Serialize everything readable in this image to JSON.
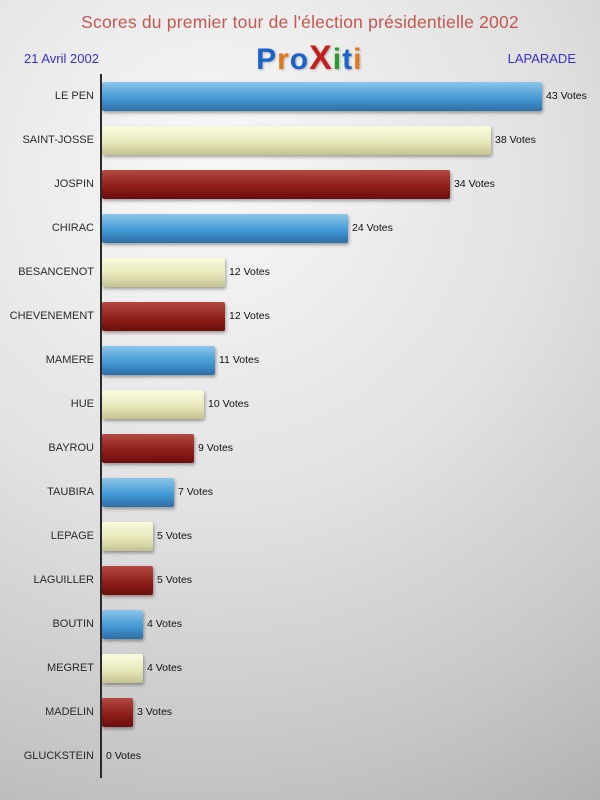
{
  "header": {
    "title": "Scores du premier tour de l'élection présidentielle 2002",
    "date": "21 Avril 2002",
    "location": "LAPARADE",
    "logo_letters": [
      {
        "ch": "P",
        "color": "#1b63c8",
        "big": false
      },
      {
        "ch": "r",
        "color": "#e07818",
        "big": false
      },
      {
        "ch": "o",
        "color": "#1b63c8",
        "big": false
      },
      {
        "ch": "X",
        "color": "#c41f1f",
        "big": true
      },
      {
        "ch": "i",
        "color": "#2a9a2a",
        "big": false
      },
      {
        "ch": "t",
        "color": "#1b63c8",
        "big": false
      },
      {
        "ch": "i",
        "color": "#e07818",
        "big": false
      }
    ]
  },
  "chart_data": {
    "type": "bar",
    "orientation": "horizontal",
    "title": "Scores du premier tour de l'élection présidentielle 2002",
    "categories": [
      "LE PEN",
      "SAINT-JOSSE",
      "JOSPIN",
      "CHIRAC",
      "BESANCENOT",
      "CHEVENEMENT",
      "MAMERE",
      "HUE",
      "BAYROU",
      "TAUBIRA",
      "LEPAGE",
      "LAGUILLER",
      "BOUTIN",
      "MEGRET",
      "MADELIN",
      "GLUCKSTEIN"
    ],
    "values": [
      43,
      38,
      34,
      24,
      12,
      12,
      11,
      10,
      9,
      7,
      5,
      5,
      4,
      4,
      3,
      0
    ],
    "value_suffix": " Votes",
    "xlim": [
      0,
      43
    ],
    "legend": "none",
    "grid": false,
    "color_cycle": [
      "blue",
      "cream",
      "darkred"
    ],
    "palette": {
      "blue": [
        "#8cc6e8",
        "#459ad6",
        "#2d6fa5"
      ],
      "cream": [
        "#fafae0",
        "#e8e8bc",
        "#c2c292"
      ],
      "darkred": [
        "#b24a42",
        "#8e1f1a",
        "#6b0e0c"
      ]
    }
  }
}
